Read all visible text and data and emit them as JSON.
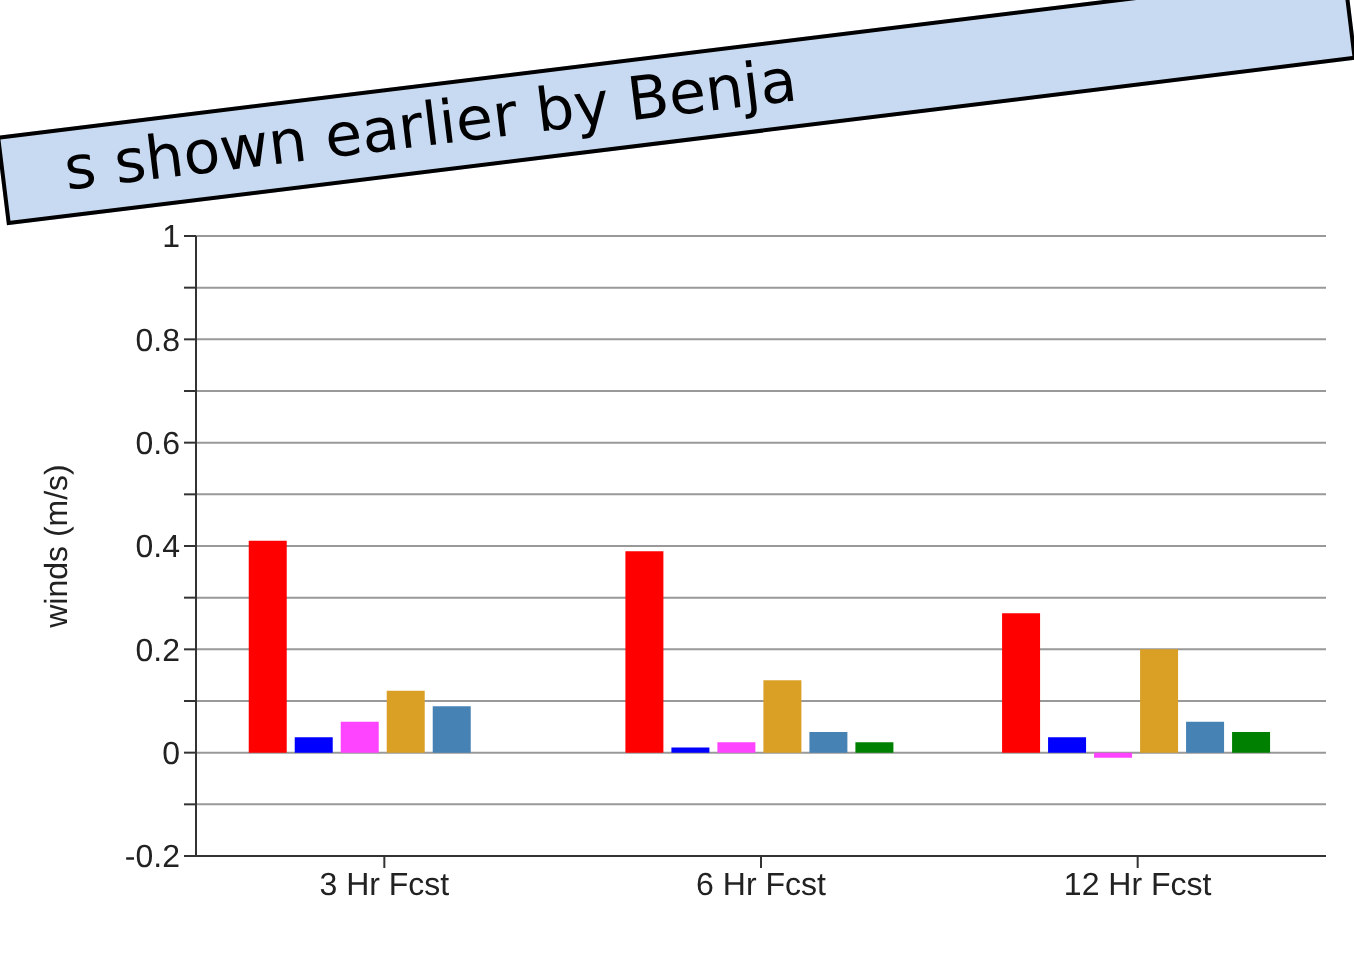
{
  "chart_data": {
    "type": "bar",
    "ylabel": "winds (m/s)",
    "categories": [
      "3 Hr Fcst",
      "6 Hr Fcst",
      "12 Hr Fcst"
    ],
    "series": [
      {
        "color": "#ff0000",
        "values": [
          0.41,
          0.39,
          0.27
        ]
      },
      {
        "color": "#0000ff",
        "values": [
          0.03,
          0.01,
          0.03
        ]
      },
      {
        "color": "#ff44ff",
        "values": [
          0.06,
          0.02,
          -0.01
        ]
      },
      {
        "color": "#daa025",
        "values": [
          0.12,
          0.14,
          0.2
        ]
      },
      {
        "color": "#4682b4",
        "values": [
          0.09,
          0.04,
          0.06
        ]
      },
      {
        "color": "#008000",
        "values": [
          null,
          0.02,
          0.04
        ]
      }
    ],
    "ylim": [
      -0.2,
      1
    ],
    "yticks": [
      -0.2,
      {
        "value": -0.1,
        "label": null
      },
      0,
      {
        "value": 0.1,
        "label": null
      },
      0.2,
      {
        "value": 0.3,
        "label": null
      },
      0.4,
      {
        "value": 0.5,
        "label": null
      },
      0.6,
      {
        "value": 0.7,
        "label": null
      },
      0.8,
      {
        "value": 0.9,
        "label": null
      },
      1
    ],
    "grid": "y",
    "legend": false,
    "annotations": [
      "s shown earlier by Benja"
    ]
  }
}
